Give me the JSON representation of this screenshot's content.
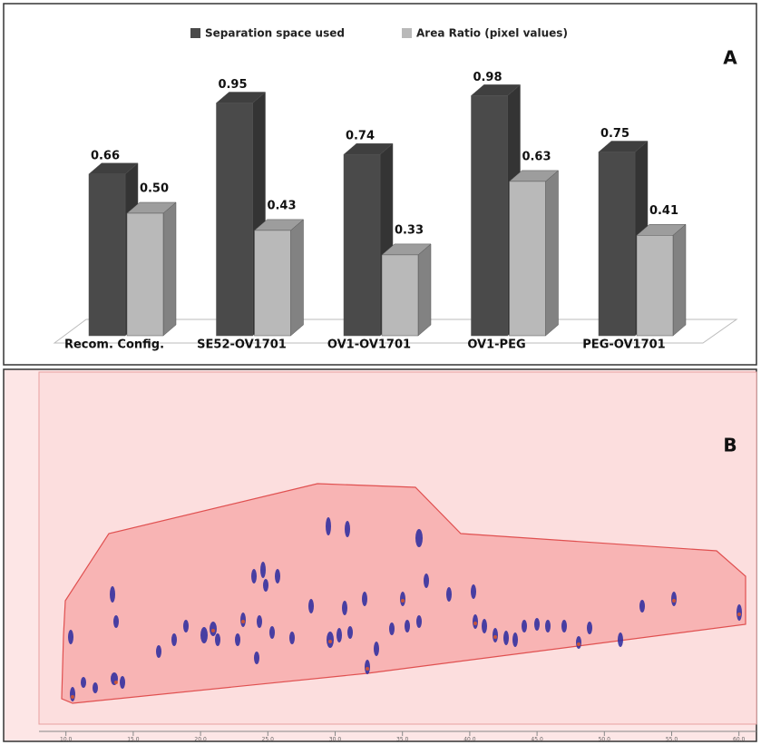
{
  "chart_data": [
    {
      "type": "bar3d",
      "panel_label": "A",
      "categories": [
        "Recom. Config.",
        "SE52-OV1701",
        "OV1-OV1701",
        "OV1-PEG",
        "PEG-OV1701"
      ],
      "series": [
        {
          "name": "Separation space used",
          "color": "#4a4a4a",
          "values": [
            0.66,
            0.95,
            0.74,
            0.98,
            0.75
          ],
          "value_labels": [
            "0.66",
            "0.95",
            "0.74",
            "0.98",
            "0.75"
          ]
        },
        {
          "name": "Area Ratio (pixel values)",
          "color": "#b9b9b9",
          "values": [
            0.5,
            0.43,
            0.33,
            0.63,
            0.41
          ],
          "value_labels": [
            "0.50",
            "0.43",
            "0.33",
            "0.63",
            "0.41"
          ]
        }
      ]
    },
    {
      "type": "image-plot",
      "panel_label": "B",
      "xlim": [
        8,
        61.3
      ],
      "xticks": [
        {
          "value": 10,
          "label": "10.0"
        },
        {
          "value": 15,
          "label": "15.0"
        },
        {
          "value": 20,
          "label": "20.0"
        },
        {
          "value": 25,
          "label": "25.0"
        },
        {
          "value": 30,
          "label": "30.0"
        },
        {
          "value": 35,
          "label": "35.0"
        },
        {
          "value": 40,
          "label": "40.0"
        },
        {
          "value": 45,
          "label": "45.0"
        },
        {
          "value": 50,
          "label": "50.0"
        },
        {
          "value": 55,
          "label": "55.0"
        },
        {
          "value": 60,
          "label": "60.0"
        }
      ]
    }
  ]
}
